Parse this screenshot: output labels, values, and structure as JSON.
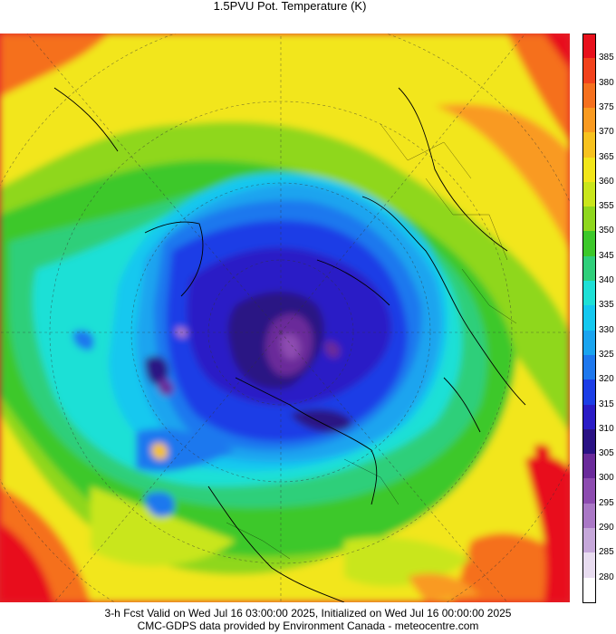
{
  "title": "1.5PVU Pot. Temperature (K)",
  "colorbar": {
    "levels": [
      {
        "label": "385",
        "color": "#e8101c"
      },
      {
        "label": "380",
        "color": "#f2421c"
      },
      {
        "label": "375",
        "color": "#f5701e"
      },
      {
        "label": "370",
        "color": "#f99a20"
      },
      {
        "label": "365",
        "color": "#f7c21e"
      },
      {
        "label": "360",
        "color": "#f2e61a"
      },
      {
        "label": "355",
        "color": "#c9e61c"
      },
      {
        "label": "350",
        "color": "#8fd71e"
      },
      {
        "label": "345",
        "color": "#3cc82a"
      },
      {
        "label": "340",
        "color": "#2fcf7a"
      },
      {
        "label": "335",
        "color": "#1ee0d6"
      },
      {
        "label": "330",
        "color": "#14c8ef"
      },
      {
        "label": "325",
        "color": "#1aa4ef"
      },
      {
        "label": "320",
        "color": "#1e78ee"
      },
      {
        "label": "315",
        "color": "#1c3ee6"
      },
      {
        "label": "310",
        "color": "#2a1cc6"
      },
      {
        "label": "305",
        "color": "#2a1284"
      },
      {
        "label": "300",
        "color": "#6a2a9a"
      },
      {
        "label": "295",
        "color": "#8d4cb0"
      },
      {
        "label": "290",
        "color": "#aa78c6"
      },
      {
        "label": "285",
        "color": "#c6a8da"
      },
      {
        "label": "280",
        "color": "#e8dcf0"
      },
      {
        "label": "",
        "color": "#ffffff"
      }
    ]
  },
  "footer": {
    "line1": "3-h Fcst Valid on Wed Jul 16 03:00:00 2025, Initialized on Wed Jul 16 00:00:00 2025",
    "line2": "CMC-GDPS data provided by Environment Canada - meteocentre.com"
  }
}
